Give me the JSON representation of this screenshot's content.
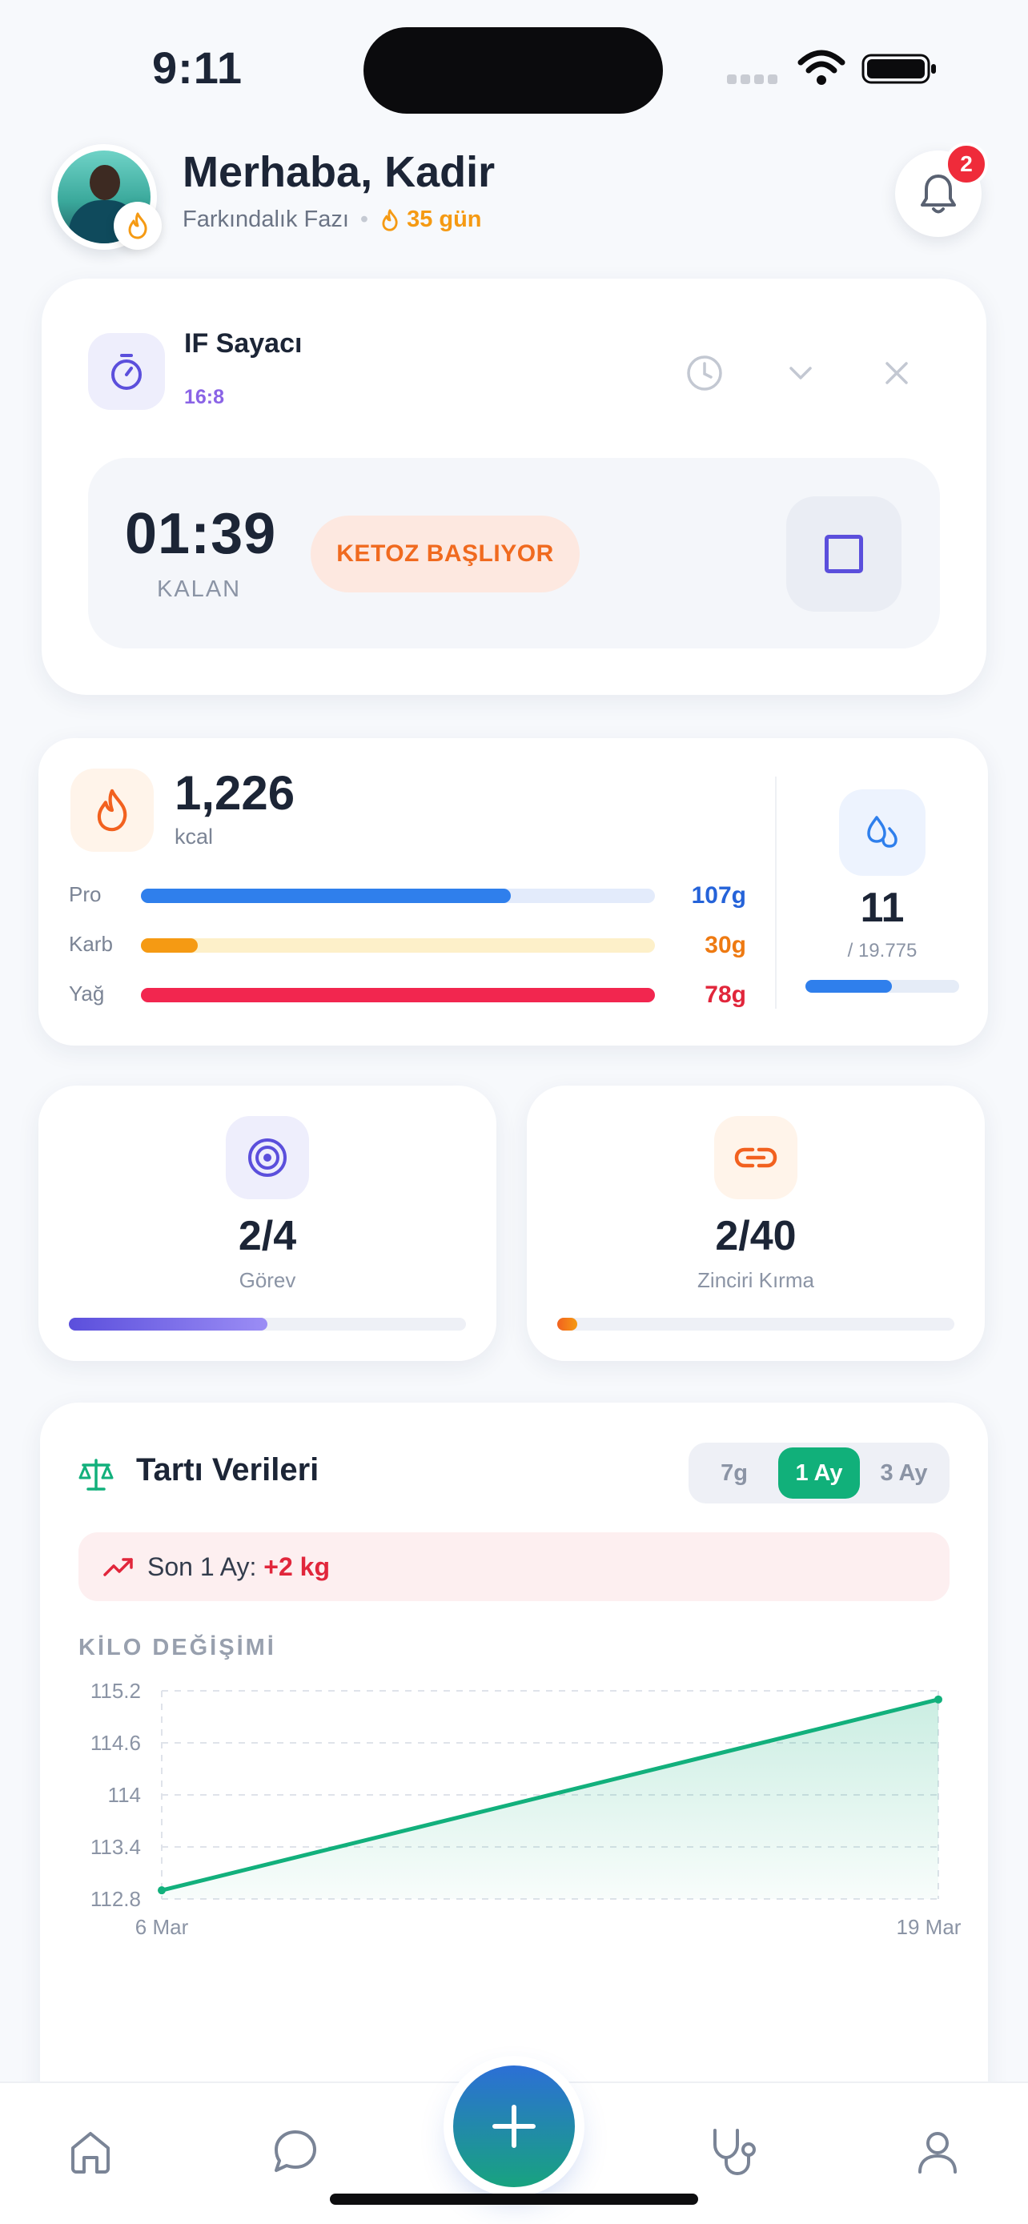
{
  "status_bar": {
    "time": "9:11"
  },
  "header": {
    "greeting": "Merhaba, Kadir",
    "phase": "Farkındalık Fazı",
    "separator": "•",
    "streak": "35 gün",
    "notification_count": "2"
  },
  "if_timer": {
    "title": "IF Sayacı",
    "ratio": "16:8",
    "remaining_time": "01:39",
    "remaining_label": "KALAN",
    "status_pill": "KETOZ BAŞLIYOR"
  },
  "nutrition": {
    "kcal": "1,226",
    "kcal_unit": "kcal",
    "macros": [
      {
        "label": "Pro",
        "value": "107g",
        "fraction": 0.72,
        "color": "#2f7fec",
        "track": "#e3ebfb",
        "text_color": "#2563d9"
      },
      {
        "label": "Karb",
        "value": "30g",
        "fraction": 0.11,
        "color": "#f59a13",
        "track": "#fdf0c9",
        "text_color": "#ee7a12"
      },
      {
        "label": "Yağ",
        "value": "78g",
        "fraction": 1.0,
        "color": "#f2264f",
        "track": "#fde0e5",
        "text_color": "#e1263b"
      }
    ],
    "water": {
      "value": "11",
      "goal": "/ 19.775",
      "fraction": 0.56
    }
  },
  "tasks": {
    "value": "2/4",
    "label": "Görev",
    "fraction": 0.5
  },
  "chain": {
    "value": "2/40",
    "label": "Zinciri Kırma",
    "fraction": 0.05
  },
  "weight": {
    "title": "Tartı Verileri",
    "ranges": [
      "7g",
      "1 Ay",
      "3 Ay"
    ],
    "active_range": "1 Ay",
    "trend_prefix": "Son 1 Ay:",
    "trend_value": "+2 kg",
    "chart_title": "KİLO DEĞİŞİMİ"
  },
  "chart_data": {
    "type": "area",
    "title": "KİLO DEĞİŞİMİ",
    "x": [
      "6 Mar",
      "19 Mar"
    ],
    "series": [
      {
        "values": [
          112.9,
          115.1
        ]
      }
    ],
    "y_ticks": [
      "115.2",
      "114.6",
      "114",
      "113.4",
      "112.8"
    ],
    "x_ticks": [
      "6 Mar",
      "19 Mar"
    ],
    "ylim": [
      112.8,
      115.2
    ],
    "grid": true,
    "line_color": "#12b07c"
  },
  "nav": {
    "items": [
      "home-icon",
      "chat-icon",
      "plus-icon",
      "stethoscope-icon",
      "profile-icon"
    ]
  }
}
